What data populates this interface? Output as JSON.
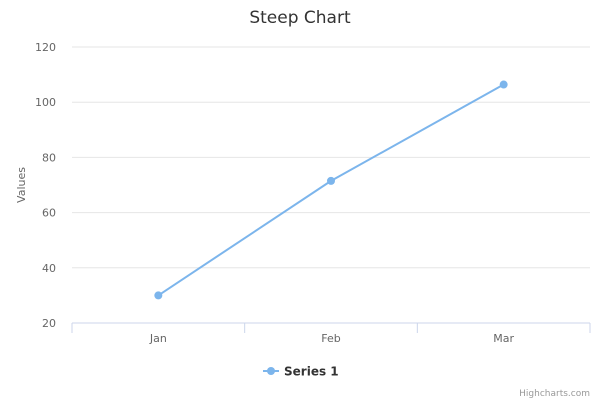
{
  "chart_data": {
    "type": "line",
    "title": "Steep Chart",
    "xlabel": "",
    "ylabel": "Values",
    "categories": [
      "Jan",
      "Feb",
      "Mar"
    ],
    "series": [
      {
        "name": "Series 1",
        "values": [
          30,
          71.5,
          106.4
        ],
        "color": "#7cb5ec"
      }
    ],
    "ylim": [
      20,
      120
    ],
    "yticks": [
      "20",
      "40",
      "60",
      "80",
      "100",
      "120"
    ],
    "grid": true,
    "legend_position": "bottom-center"
  },
  "credits": "Highcharts.com",
  "colors": {
    "gridline": "#e6e6e6",
    "axis": "#ccd6eb",
    "series": "#7cb5ec"
  }
}
